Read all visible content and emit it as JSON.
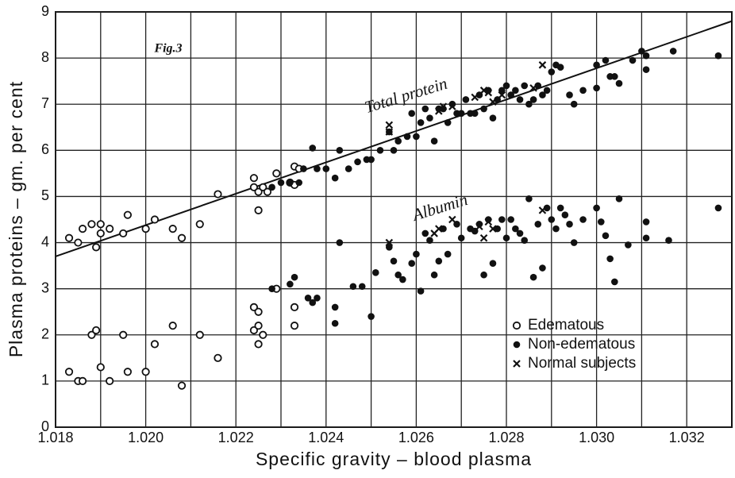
{
  "chart_data": {
    "type": "scatter",
    "title": "Fig.3",
    "xlabel": "Specific gravity – blood plasma",
    "ylabel": "Plasma proteins – gm. per cent",
    "xlim": [
      1.018,
      1.033
    ],
    "ylim": [
      0,
      9
    ],
    "xticks": [
      1.018,
      {
        "value": 1.02,
        "label": "1.020"
      },
      1.022,
      1.024,
      1.026,
      1.028,
      {
        "value": 1.03,
        "label": "1.030"
      },
      1.032
    ],
    "xminor_ticks": [
      1.019,
      1.021,
      1.023,
      1.025,
      1.027,
      1.029,
      1.031
    ],
    "yticks": [
      0,
      1,
      2,
      3,
      4,
      5,
      6,
      7,
      8,
      9
    ],
    "grid": true,
    "legend": "lower right",
    "annotations": [
      {
        "text": "Total protein"
      },
      {
        "text": "Albumin"
      }
    ],
    "trend_line": {
      "x": [
        1.018,
        1.033
      ],
      "y": [
        3.7,
        8.8
      ]
    },
    "series": [
      {
        "name": "Edematous",
        "color": "#111111",
        "marker": "open-circle",
        "x": [
          1.0183,
          1.0185,
          1.0186,
          1.0188,
          1.0189,
          1.019,
          1.019,
          1.0192,
          1.0195,
          1.0196,
          1.02,
          1.0202,
          1.0206,
          1.0208,
          1.0212,
          1.0216,
          1.0224,
          1.0224,
          1.0225,
          1.0225,
          1.0226,
          1.0227,
          1.0229,
          1.0232,
          1.0233,
          1.0233,
          1.0234,
          1.0183,
          1.0185,
          1.0186,
          1.0188,
          1.0189,
          1.019,
          1.0192,
          1.0195,
          1.0196,
          1.02,
          1.0202,
          1.0206,
          1.0208,
          1.0212,
          1.0216,
          1.0224,
          1.0224,
          1.0225,
          1.0225,
          1.0225,
          1.0226,
          1.0229,
          1.0233,
          1.0233
        ],
        "values": [
          4.1,
          4.0,
          4.3,
          4.4,
          3.9,
          4.4,
          4.2,
          4.3,
          4.2,
          4.6,
          4.3,
          4.5,
          4.3,
          4.1,
          4.4,
          5.05,
          5.2,
          5.4,
          5.1,
          4.7,
          5.2,
          5.1,
          5.5,
          5.3,
          5.65,
          5.25,
          5.6,
          1.2,
          1.0,
          1.0,
          2.0,
          2.1,
          1.3,
          1.0,
          2.0,
          1.2,
          1.2,
          1.8,
          2.2,
          0.9,
          2.0,
          1.5,
          2.6,
          2.1,
          2.5,
          2.2,
          1.8,
          2.0,
          3.0,
          2.6,
          2.2
        ]
      },
      {
        "name": "Non-edematous",
        "color": "#111111",
        "marker": "filled-circle",
        "x": [
          1.0228,
          1.023,
          1.0232,
          1.0234,
          1.0235,
          1.0237,
          1.0238,
          1.024,
          1.0242,
          1.0243,
          1.0245,
          1.0247,
          1.0249,
          1.025,
          1.0252,
          1.0254,
          1.0255,
          1.0256,
          1.0258,
          1.0259,
          1.026,
          1.0261,
          1.0262,
          1.0263,
          1.0264,
          1.0265,
          1.0266,
          1.0267,
          1.0268,
          1.0269,
          1.027,
          1.0271,
          1.0272,
          1.0273,
          1.0274,
          1.0275,
          1.0276,
          1.0277,
          1.0278,
          1.0279,
          1.028,
          1.0281,
          1.0282,
          1.0283,
          1.0284,
          1.0285,
          1.0286,
          1.0287,
          1.0288,
          1.0289,
          1.029,
          1.0291,
          1.0292,
          1.0294,
          1.0295,
          1.0297,
          1.03,
          1.03,
          1.0302,
          1.0303,
          1.0304,
          1.0305,
          1.0308,
          1.031,
          1.0311,
          1.0311,
          1.0317,
          1.0327,
          1.0228,
          1.0232,
          1.0233,
          1.0236,
          1.0237,
          1.0238,
          1.0242,
          1.0242,
          1.0243,
          1.0246,
          1.0248,
          1.025,
          1.0251,
          1.0254,
          1.0255,
          1.0256,
          1.0257,
          1.0259,
          1.026,
          1.0261,
          1.0262,
          1.0263,
          1.0264,
          1.0265,
          1.0266,
          1.0267,
          1.0269,
          1.027,
          1.0272,
          1.0273,
          1.0274,
          1.0275,
          1.0276,
          1.0277,
          1.0278,
          1.0279,
          1.028,
          1.0281,
          1.0282,
          1.0283,
          1.0284,
          1.0285,
          1.0286,
          1.0287,
          1.0288,
          1.0289,
          1.029,
          1.0291,
          1.0292,
          1.0293,
          1.0294,
          1.0295,
          1.0297,
          1.03,
          1.0301,
          1.0302,
          1.0303,
          1.0304,
          1.0305,
          1.0307,
          1.0311,
          1.0311,
          1.0316,
          1.0327
        ],
        "values": [
          5.2,
          5.3,
          5.3,
          5.3,
          5.6,
          6.05,
          5.6,
          5.6,
          5.4,
          6.0,
          5.6,
          5.75,
          5.8,
          5.8,
          6.0,
          6.4,
          6.0,
          6.2,
          6.3,
          6.8,
          6.3,
          6.6,
          6.9,
          6.7,
          6.2,
          6.9,
          6.9,
          6.6,
          7.0,
          6.8,
          6.8,
          7.1,
          6.8,
          6.8,
          7.2,
          6.9,
          7.3,
          6.7,
          7.1,
          7.3,
          7.4,
          7.2,
          7.3,
          7.1,
          7.4,
          7.0,
          7.1,
          7.4,
          7.2,
          7.3,
          7.7,
          7.85,
          7.8,
          7.2,
          7.0,
          7.3,
          7.35,
          7.85,
          7.95,
          7.6,
          7.6,
          7.45,
          7.95,
          8.15,
          8.05,
          7.75,
          8.15,
          8.05,
          3.0,
          3.1,
          3.25,
          2.8,
          2.7,
          2.8,
          2.6,
          2.25,
          4.0,
          3.05,
          3.05,
          2.4,
          3.35,
          3.9,
          3.6,
          3.3,
          3.2,
          3.55,
          3.75,
          2.95,
          4.2,
          4.05,
          3.3,
          3.6,
          4.3,
          3.75,
          4.4,
          4.1,
          4.3,
          4.25,
          4.4,
          3.3,
          4.5,
          3.55,
          4.3,
          4.5,
          4.1,
          4.5,
          4.3,
          4.2,
          4.05,
          4.95,
          3.25,
          4.4,
          3.45,
          4.75,
          4.5,
          4.3,
          4.75,
          4.6,
          4.4,
          4.0,
          4.5,
          4.75,
          4.45,
          4.15,
          3.65,
          3.15,
          4.95,
          3.95,
          4.45,
          4.1,
          4.05,
          4.75
        ]
      },
      {
        "name": "Normal subjects",
        "color": "#111111",
        "marker": "x",
        "x": [
          1.0254,
          1.0254,
          1.0265,
          1.0266,
          1.0268,
          1.0273,
          1.0275,
          1.0276,
          1.0277,
          1.0279,
          1.0286,
          1.0288,
          1.0254,
          1.0264,
          1.0265,
          1.0268,
          1.0274,
          1.0275,
          1.0276,
          1.0277,
          1.0288
        ],
        "values": [
          6.55,
          6.4,
          6.85,
          6.95,
          6.95,
          7.15,
          7.3,
          7.25,
          7.05,
          7.2,
          7.35,
          7.85,
          4.0,
          4.2,
          4.3,
          4.5,
          4.35,
          4.1,
          4.45,
          4.3,
          4.7
        ]
      }
    ]
  }
}
